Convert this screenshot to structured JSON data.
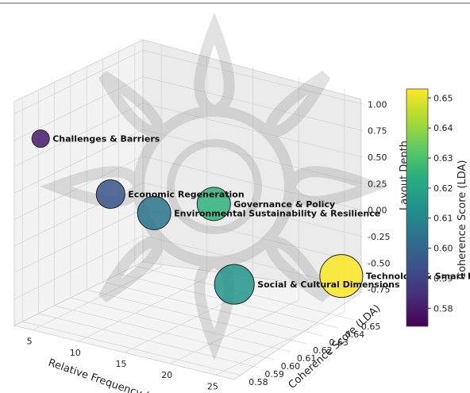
{
  "chart_data": {
    "type": "scatter",
    "dimensions": "3d-bubble",
    "x_axis": {
      "label": "Relative Frequency (%)",
      "ticks": [
        5,
        10,
        15,
        20,
        25
      ],
      "range": [
        3,
        27
      ]
    },
    "y_axis": {
      "label": "Coherence Score (LDA)",
      "ticks": [
        0.58,
        0.59,
        0.6,
        0.61,
        0.62,
        0.63,
        0.64,
        0.65
      ],
      "range": [
        0.575,
        0.655
      ]
    },
    "z_axis": {
      "label": "Layout Depth",
      "ticks": [
        -0.75,
        -0.5,
        -0.25,
        0.0,
        0.25,
        0.5,
        0.75,
        1.0
      ],
      "range": [
        -1.0,
        1.1
      ]
    },
    "colorbar": {
      "label": "Coherence Score (LDA)",
      "ticks": [
        0.58,
        0.59,
        0.6,
        0.61,
        0.62,
        0.63,
        0.64,
        0.65
      ],
      "range": [
        0.574,
        0.653
      ],
      "colormap": "viridis"
    },
    "points": [
      {
        "label": "Challenges & Barriers",
        "x": 5,
        "y": 0.58,
        "z": 0.77,
        "coherence": 0.58,
        "size": 22
      },
      {
        "label": "Economic Regeneration",
        "x": 10,
        "y": 0.595,
        "z": 0.24,
        "coherence": 0.595,
        "size": 36
      },
      {
        "label": "Environmental Sustainability & Resilience",
        "x": 13,
        "y": 0.605,
        "z": 0.05,
        "coherence": 0.605,
        "size": 42
      },
      {
        "label": "Governance & Policy",
        "x": 16,
        "y": 0.625,
        "z": 0.05,
        "coherence": 0.625,
        "size": 42
      },
      {
        "label": "Social & Cultural Dimensions",
        "x": 20,
        "y": 0.615,
        "z": -0.55,
        "coherence": 0.615,
        "size": 50
      },
      {
        "label": "Technology & Smart Infrastructure",
        "x": 25,
        "y": 0.653,
        "z": -0.65,
        "coherence": 0.653,
        "size": 54
      }
    ],
    "grid": true
  }
}
